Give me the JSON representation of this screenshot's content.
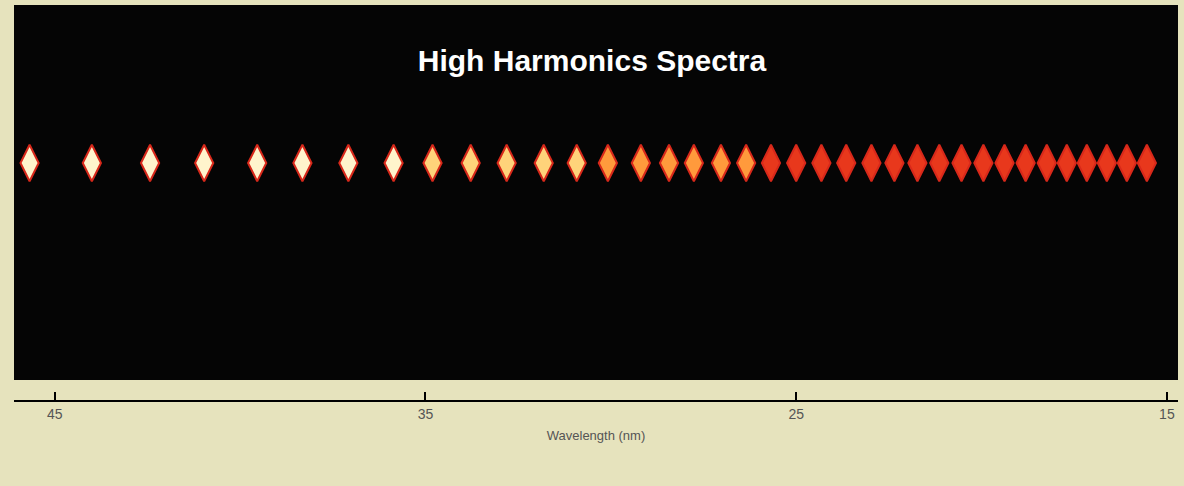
{
  "chart_data": {
    "type": "scatter",
    "title": "High Harmonics Spectra",
    "x_label": "Wavelength (nm)",
    "x": [
      45.68,
      44.0,
      42.43,
      40.97,
      39.54,
      38.32,
      37.08,
      35.86,
      34.81,
      33.78,
      32.81,
      31.81,
      30.92,
      30.08,
      29.19,
      28.43,
      27.76,
      27.03,
      26.35,
      25.68,
      25.0,
      24.32,
      23.65,
      22.97,
      22.35,
      21.73,
      21.14,
      20.54,
      19.95,
      19.38,
      18.81,
      18.24,
      17.7,
      17.16,
      16.62,
      16.08,
      15.54
    ],
    "colors": [
      "#fff4cc",
      "#fff4cc",
      "#fff4cc",
      "#fff4cc",
      "#fff4cc",
      "#fff4cc",
      "#fff4cc",
      "#fff4cc",
      "#ffd37a",
      "#ffd37a",
      "#ffd37a",
      "#ffd37a",
      "#ffd37a",
      "#ff9a3c",
      "#ff9a3c",
      "#ff9a3c",
      "#ff9a3c",
      "#ff9a3c",
      "#ff9a3c",
      "#e8381c",
      "#e8381c",
      "#e8381c",
      "#e8381c",
      "#e8381c",
      "#e8381c",
      "#e8381c",
      "#e8381c",
      "#e8381c",
      "#e8381c",
      "#e8381c",
      "#e8381c",
      "#e8381c",
      "#e8381c",
      "#e8381c",
      "#e8381c",
      "#e8381c",
      "#e8381c"
    ],
    "marker": "diamond-tall",
    "xlim": [
      46.1,
      14.7
    ],
    "xticks": [
      45,
      35,
      25,
      15
    ],
    "grid": false,
    "tick_labels": "x"
  }
}
